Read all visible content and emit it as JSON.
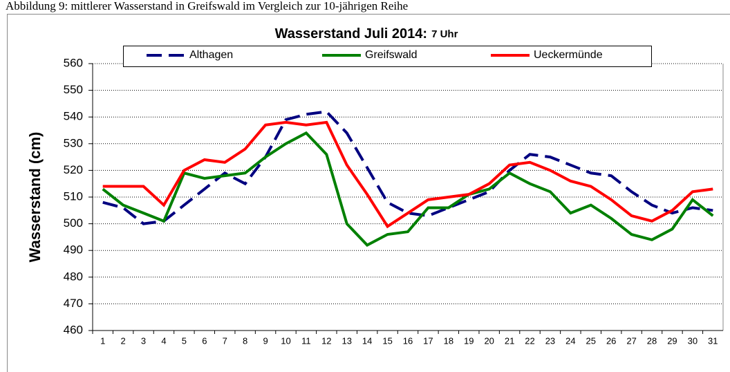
{
  "caption": "Abbildung 9: mittlerer Wasserstand in Greifswald im Vergleich zur 10-jährigen Reihe",
  "chart_data": {
    "type": "line",
    "title": "Wasserstand Juli 2014:",
    "subtitle": "7 Uhr",
    "y_label": "Wasserstand (cm)",
    "categories": [
      1,
      2,
      3,
      4,
      5,
      6,
      7,
      8,
      9,
      10,
      11,
      12,
      13,
      14,
      15,
      16,
      17,
      18,
      19,
      20,
      21,
      22,
      23,
      24,
      25,
      26,
      27,
      28,
      29,
      30,
      31
    ],
    "series": [
      {
        "name": "Althagen",
        "color": "#000080",
        "dashed": true,
        "values": [
          508,
          506,
          500,
          501,
          507,
          513,
          519,
          515,
          525,
          539,
          541,
          542,
          534,
          521,
          508,
          504,
          503,
          506,
          509,
          512,
          520,
          526,
          525,
          522,
          519,
          518,
          512,
          507,
          504,
          506,
          505
        ]
      },
      {
        "name": "Greifswald",
        "color": "#008000",
        "dashed": false,
        "values": [
          513,
          507,
          504,
          501,
          519,
          517,
          518,
          519,
          525,
          530,
          534,
          526,
          500,
          492,
          496,
          497,
          506,
          506,
          511,
          513,
          519,
          515,
          512,
          504,
          507,
          502,
          496,
          494,
          498,
          509,
          503
        ]
      },
      {
        "name": "Ueckermünde",
        "color": "#ff0000",
        "dashed": false,
        "values": [
          514,
          514,
          514,
          507,
          520,
          524,
          523,
          528,
          537,
          538,
          537,
          538,
          522,
          511,
          499,
          504,
          509,
          510,
          511,
          515,
          522,
          523,
          520,
          516,
          514,
          509,
          503,
          501,
          505,
          512,
          513
        ]
      }
    ],
    "ylim": [
      460,
      560
    ],
    "yticks": [
      460,
      470,
      480,
      490,
      500,
      510,
      520,
      530,
      540,
      550,
      560
    ],
    "grid": true
  }
}
